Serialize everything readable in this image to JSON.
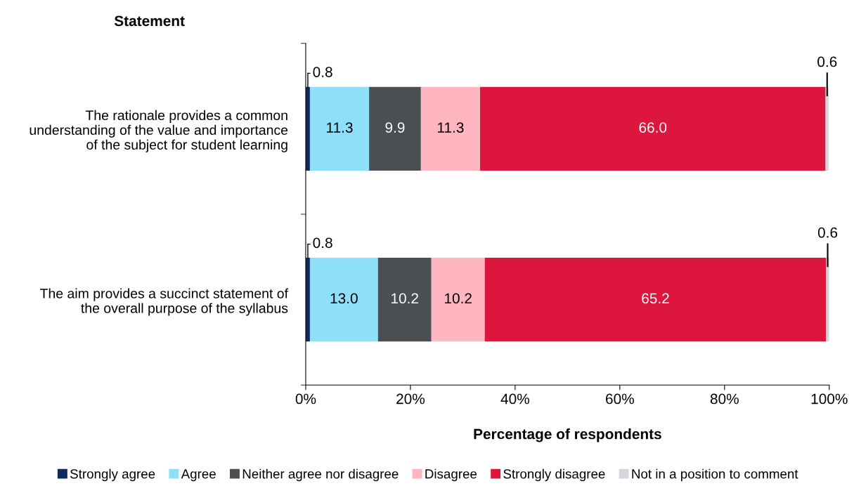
{
  "chart_data": {
    "type": "bar",
    "orientation": "horizontal",
    "stacked": true,
    "ylabel": "Statement",
    "xlabel": "Percentage of respondents",
    "categories": [
      "The rationale provides a common\nunderstanding of the value and importance\nof the subject for student learning",
      "The aim provides a succinct statement of\nthe overall purpose of the syllabus"
    ],
    "series": [
      {
        "name": "Strongly agree",
        "color": "#0f2b5b",
        "values": [
          0.8,
          0.8
        ],
        "value_labels": [
          "0.8",
          "0.8"
        ]
      },
      {
        "name": "Agree",
        "color": "#8ee0fa",
        "values": [
          11.3,
          13
        ],
        "value_labels": [
          "11.3",
          "13.0"
        ]
      },
      {
        "name": "Neither agree nor disagree",
        "color": "#4a4f54",
        "values": [
          9.9,
          10.2
        ],
        "value_labels": [
          "9.9",
          "10.2"
        ]
      },
      {
        "name": "Disagree",
        "color": "#ffb6c1",
        "values": [
          11.3,
          10.2
        ],
        "value_labels": [
          "11.3",
          "10.2"
        ]
      },
      {
        "name": "Strongly disagree",
        "color": "#dc163c",
        "values": [
          66,
          65.2
        ],
        "value_labels": [
          "66.0",
          "65.2"
        ]
      },
      {
        "name": "Not in a position to comment",
        "color": "#d3d6da",
        "values": [
          0.6,
          0.6
        ],
        "value_labels": [
          "0.6",
          "0.6"
        ]
      }
    ],
    "xlim": [
      0,
      100
    ],
    "xticks": [
      {
        "value": 0,
        "label": "0%"
      },
      {
        "value": 20,
        "label": "20%"
      },
      {
        "value": 40,
        "label": "40%"
      },
      {
        "value": 60,
        "label": "60%"
      },
      {
        "value": 80,
        "label": "80%"
      },
      {
        "value": 100,
        "label": "100%"
      }
    ],
    "grid": false,
    "legend": "bottom"
  }
}
